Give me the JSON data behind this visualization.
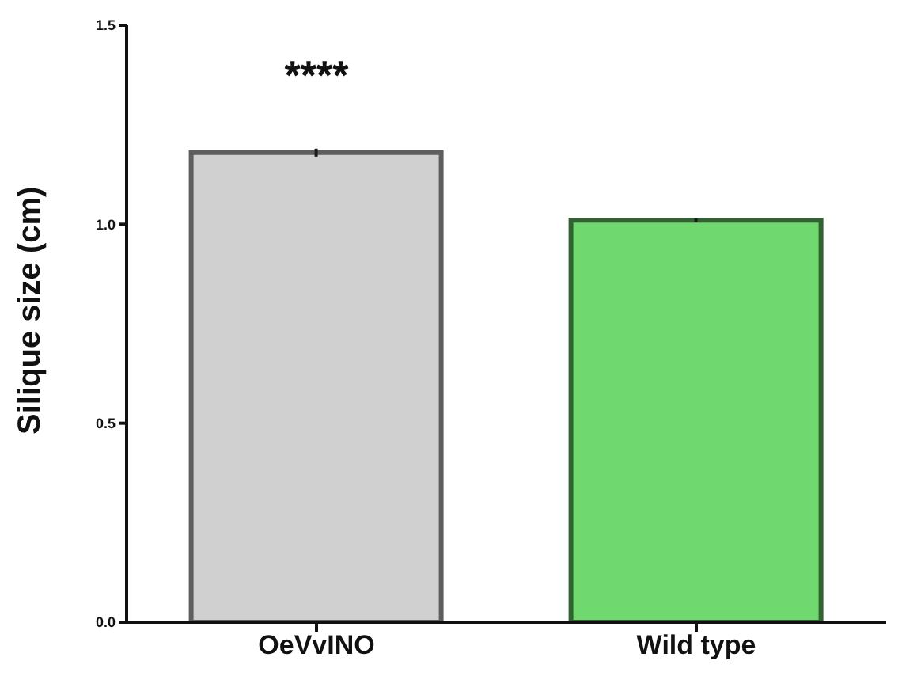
{
  "chart_data": {
    "type": "bar",
    "ylabel": "Silique size (cm)",
    "categories": [
      "OeVvINO",
      "Wild type"
    ],
    "values": [
      1.18,
      1.01
    ],
    "errors": [
      0.01,
      0.005
    ],
    "colors": [
      "#d0d0d0",
      "#6fd86f"
    ],
    "ylim": [
      0,
      1.5
    ],
    "yticks": [
      {
        "value": 0,
        "label": "0.0"
      },
      0.5,
      {
        "value": 1,
        "label": "1.0"
      },
      1.5
    ],
    "annotations": [
      "****"
    ]
  }
}
